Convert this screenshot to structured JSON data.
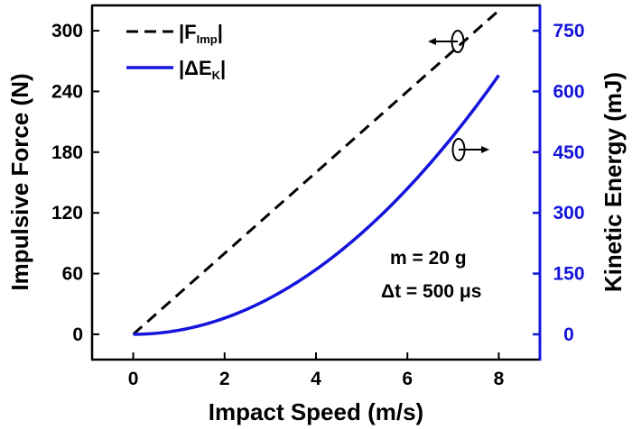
{
  "chart_data": {
    "type": "line",
    "xlabel": "Impact Speed (m/s)",
    "ylabel_left": "Impulsive Force (N)",
    "ylabel_right": "Kinetic Energy (mJ)",
    "xlim": [
      -0.9,
      8.9
    ],
    "ylim_left": [
      -25,
      325
    ],
    "ylim_right": [
      -62.5,
      812.5
    ],
    "x_ticks": [
      "0",
      "2",
      "4",
      "6",
      "8"
    ],
    "y_ticks_left": [
      "0",
      "60",
      "120",
      "180",
      "240",
      "300"
    ],
    "y_ticks_right": [
      "0",
      "150",
      "300",
      "450",
      "600",
      "750"
    ],
    "series": [
      {
        "name_main": "|F",
        "name_sub": "Imp",
        "name_tail": "|",
        "axis": "left",
        "style": "dashed",
        "color": "#000000",
        "x": [
          0,
          1,
          2,
          3,
          4,
          5,
          6,
          7,
          8
        ],
        "y": [
          0,
          40,
          80,
          120,
          160,
          200,
          240,
          280,
          320
        ]
      },
      {
        "name_main": "|ΔE",
        "name_sub": "K",
        "name_tail": "|",
        "axis": "right",
        "style": "solid",
        "color": "#1414dc",
        "x": [
          0,
          1,
          2,
          3,
          4,
          5,
          6,
          7,
          8
        ],
        "y": [
          0,
          10,
          40,
          90,
          160,
          250,
          360,
          490,
          640
        ]
      }
    ],
    "annotations": [
      "m = 20 g",
      "Δt = 500 μs"
    ],
    "grid": false,
    "legend_position": "top-left"
  },
  "colors": {
    "left_axis": "#000000",
    "right_axis": "#1414dc"
  }
}
